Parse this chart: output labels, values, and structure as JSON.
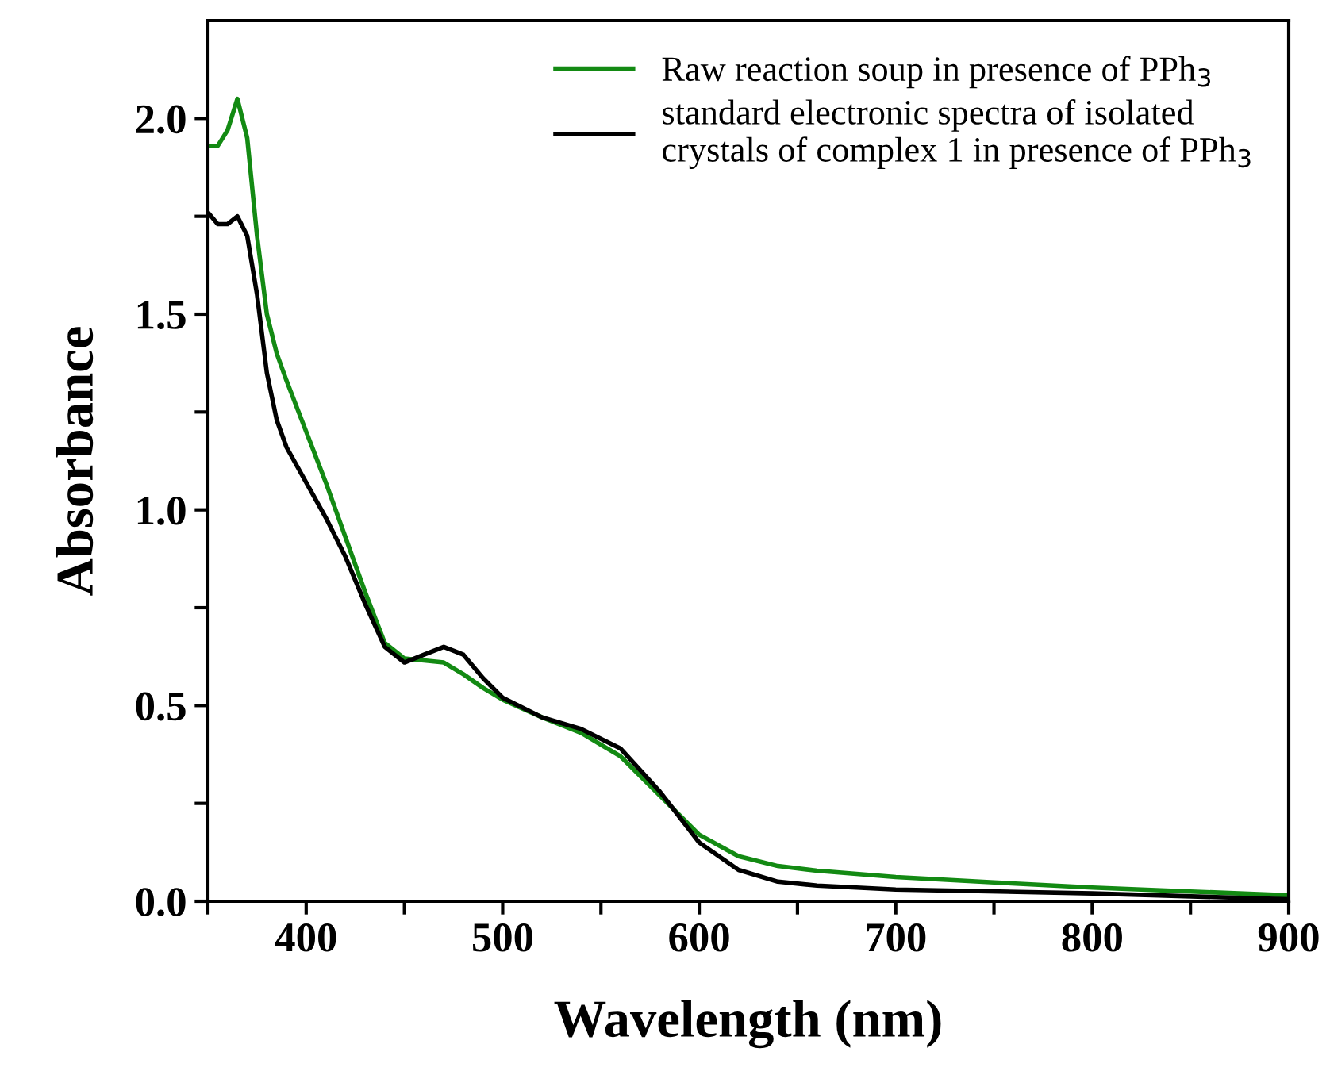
{
  "chart_data": {
    "type": "line",
    "xlabel": "Wavelength (nm)",
    "ylabel": "Absorbance",
    "xlim": [
      350,
      900
    ],
    "ylim": [
      0,
      2.25
    ],
    "xticks": [
      {
        "value": 350,
        "label": null
      },
      400,
      {
        "value": 450,
        "label": null
      },
      500,
      {
        "value": 550,
        "label": null
      },
      600,
      {
        "value": 650,
        "label": null
      },
      700,
      {
        "value": 750,
        "label": null
      },
      800,
      {
        "value": 850,
        "label": null
      },
      900
    ],
    "yticks": [
      {
        "value": 0,
        "label": "0.0"
      },
      {
        "value": 0.25,
        "label": null
      },
      0.5,
      {
        "value": 0.75,
        "label": null
      },
      {
        "value": 1,
        "label": "1.0"
      },
      {
        "value": 1.25,
        "label": null
      },
      1.5,
      {
        "value": 1.75,
        "label": null
      },
      {
        "value": 2,
        "label": "2.0"
      }
    ],
    "grid": false,
    "legend": "top right",
    "line_style": "solid",
    "marker": "none",
    "series": [
      {
        "name": "Raw reaction soup in presence of PPh$_{3}$",
        "color": "#138a13",
        "x": [
          350,
          355,
          360,
          365,
          370,
          375,
          380,
          385,
          390,
          400,
          410,
          420,
          430,
          440,
          450,
          460,
          470,
          480,
          490,
          500,
          520,
          540,
          560,
          580,
          600,
          620,
          640,
          660,
          700,
          750,
          800,
          850,
          900
        ],
        "values": [
          1.93,
          1.93,
          1.97,
          2.05,
          1.95,
          1.7,
          1.5,
          1.4,
          1.33,
          1.2,
          1.07,
          0.93,
          0.79,
          0.66,
          0.62,
          0.615,
          0.61,
          0.58,
          0.545,
          0.515,
          0.47,
          0.43,
          0.37,
          0.27,
          0.17,
          0.115,
          0.09,
          0.078,
          0.062,
          0.048,
          0.035,
          0.025,
          0.015
        ]
      },
      {
        "name": "standard electronic spectra of isolated\ncrystals of complex 1 in presence of PPh$_{3}$",
        "color": "#000000",
        "x": [
          350,
          355,
          360,
          365,
          370,
          375,
          380,
          385,
          390,
          400,
          410,
          420,
          430,
          440,
          450,
          460,
          470,
          480,
          490,
          500,
          520,
          540,
          560,
          580,
          600,
          620,
          640,
          660,
          700,
          800,
          900
        ],
        "values": [
          1.76,
          1.73,
          1.73,
          1.75,
          1.7,
          1.55,
          1.35,
          1.23,
          1.16,
          1.07,
          0.98,
          0.88,
          0.76,
          0.65,
          0.61,
          0.63,
          0.65,
          0.63,
          0.57,
          0.52,
          0.47,
          0.44,
          0.39,
          0.28,
          0.15,
          0.08,
          0.05,
          0.04,
          0.03,
          0.02,
          0.005
        ]
      }
    ]
  }
}
